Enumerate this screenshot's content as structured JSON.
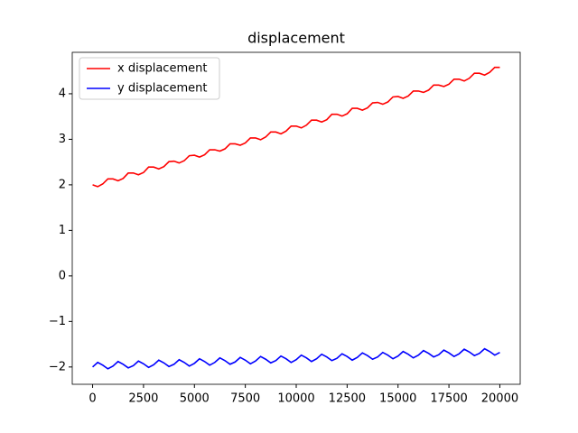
{
  "chart_data": {
    "type": "line",
    "title": "displacement",
    "x": [
      0,
      250,
      500,
      750,
      1000,
      1250,
      1500,
      1750,
      2000,
      2250,
      2500,
      2750,
      3000,
      3250,
      3500,
      3750,
      4000,
      4250,
      4500,
      4750,
      5000,
      5250,
      5500,
      5750,
      6000,
      6250,
      6500,
      6750,
      7000,
      7250,
      7500,
      7750,
      8000,
      8250,
      8500,
      8750,
      9000,
      9250,
      9500,
      9750,
      10000,
      10250,
      10500,
      10750,
      11000,
      11250,
      11500,
      11750,
      12000,
      12250,
      12500,
      12750,
      13000,
      13250,
      13500,
      13750,
      14000,
      14250,
      14500,
      14750,
      15000,
      15250,
      15500,
      15750,
      16000,
      16250,
      16500,
      16750,
      17000,
      17250,
      17500,
      17750,
      18000,
      18250,
      18500,
      18750,
      19000,
      19250,
      19500,
      19750,
      20000
    ],
    "series": [
      {
        "name": "x displacement",
        "color": "#ff0000",
        "values": [
          2.0,
          1.96,
          2.02,
          2.13,
          2.13,
          2.09,
          2.14,
          2.26,
          2.26,
          2.22,
          2.27,
          2.39,
          2.39,
          2.35,
          2.4,
          2.51,
          2.52,
          2.48,
          2.53,
          2.64,
          2.65,
          2.61,
          2.66,
          2.77,
          2.77,
          2.74,
          2.79,
          2.9,
          2.9,
          2.87,
          2.92,
          3.03,
          3.03,
          2.99,
          3.05,
          3.16,
          3.16,
          3.12,
          3.18,
          3.29,
          3.29,
          3.25,
          3.31,
          3.42,
          3.42,
          3.38,
          3.43,
          3.55,
          3.55,
          3.51,
          3.56,
          3.68,
          3.68,
          3.64,
          3.69,
          3.8,
          3.81,
          3.77,
          3.82,
          3.93,
          3.94,
          3.9,
          3.95,
          4.06,
          4.06,
          4.03,
          4.08,
          4.19,
          4.19,
          4.16,
          4.21,
          4.32,
          4.32,
          4.28,
          4.34,
          4.45,
          4.45,
          4.41,
          4.47,
          4.58,
          4.58
        ]
      },
      {
        "name": "y displacement",
        "color": "#0000ff",
        "values": [
          -2.0,
          -1.9,
          -1.96,
          -2.04,
          -1.98,
          -1.88,
          -1.94,
          -2.02,
          -1.97,
          -1.87,
          -1.93,
          -2.01,
          -1.95,
          -1.85,
          -1.91,
          -1.99,
          -1.94,
          -1.84,
          -1.9,
          -1.98,
          -1.92,
          -1.82,
          -1.88,
          -1.96,
          -1.9,
          -1.8,
          -1.86,
          -1.94,
          -1.89,
          -1.79,
          -1.85,
          -1.93,
          -1.87,
          -1.77,
          -1.83,
          -1.91,
          -1.86,
          -1.76,
          -1.82,
          -1.9,
          -1.84,
          -1.74,
          -1.8,
          -1.88,
          -1.82,
          -1.72,
          -1.78,
          -1.86,
          -1.81,
          -1.71,
          -1.77,
          -1.85,
          -1.79,
          -1.69,
          -1.75,
          -1.83,
          -1.78,
          -1.68,
          -1.74,
          -1.82,
          -1.76,
          -1.66,
          -1.72,
          -1.8,
          -1.74,
          -1.64,
          -1.7,
          -1.78,
          -1.73,
          -1.63,
          -1.69,
          -1.77,
          -1.71,
          -1.61,
          -1.67,
          -1.75,
          -1.7,
          -1.6,
          -1.66,
          -1.74,
          -1.68
        ]
      }
    ],
    "xlim": [
      -1000,
      21000
    ],
    "ylim": [
      -2.38,
      4.91
    ],
    "xticks": [
      0,
      2500,
      5000,
      7500,
      10000,
      12500,
      15000,
      17500,
      20000
    ],
    "yticks": [
      {
        "value": -2,
        "label": "−2"
      },
      {
        "value": -1,
        "label": "−1"
      },
      0,
      1,
      2,
      3,
      4
    ],
    "legend": "upper left",
    "grid": false
  }
}
